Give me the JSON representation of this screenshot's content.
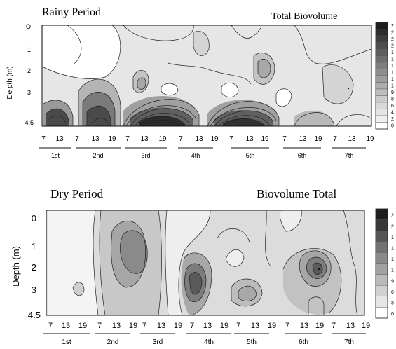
{
  "chart_data": [
    {
      "type": "contour",
      "title": "Rainy Period",
      "subtitle": "Total Biovolume",
      "ylabel": "De pth  (m)",
      "y_ticks": [
        "O",
        "1",
        "2",
        "3",
        "4.5"
      ],
      "x_ticks": [
        "7",
        "13",
        "7",
        "13",
        "19",
        "7",
        "13",
        "19",
        "7",
        "13",
        "19",
        "7",
        "13",
        "19",
        "7",
        "13",
        "19",
        "7",
        "13",
        "19"
      ],
      "x_groups": [
        "1st",
        "2nd",
        "3rd",
        "4th",
        "5th",
        "6th",
        "7th"
      ],
      "legend_labels": [
        "2",
        "2",
        "2",
        "2",
        "1",
        "1",
        "1",
        "1",
        "1",
        "1",
        "9",
        "8",
        "6",
        "4",
        "2",
        "0"
      ],
      "colors": [
        "#1e1e1e",
        "#2e2e2e",
        "#3e3e3e",
        "#4e4e4e",
        "#5e5e5e",
        "#6e6e6e",
        "#7e7e7e",
        "#8e8e8e",
        "#9e9e9e",
        "#aeaeae",
        "#bebebe",
        "#cccccc",
        "#d8d8d8",
        "#e4e4e4",
        "#efefef",
        "#ffffff"
      ]
    },
    {
      "type": "contour",
      "title": "Dry Period",
      "subtitle": "Biovolume Total",
      "ylabel": "Depth (m)",
      "y_ticks": [
        "0",
        "1",
        "2",
        "3",
        "4.5"
      ],
      "x_ticks": [
        "7",
        "13",
        "19",
        "7",
        "13",
        "19",
        "7",
        "13",
        "19",
        "7",
        "13",
        "19",
        "7",
        "13",
        "19",
        "7",
        "13",
        "19",
        "7",
        "13",
        "19"
      ],
      "x_groups": [
        "1st",
        "2nd",
        "3rd",
        "4th",
        "5th",
        "6th",
        "7th"
      ],
      "legend_labels": [
        "2",
        "2",
        "1",
        "1",
        "1",
        "1",
        "9",
        "6",
        "3",
        "0"
      ],
      "colors": [
        "#1e1e1e",
        "#3a3a3a",
        "#565656",
        "#727272",
        "#8a8a8a",
        "#a2a2a2",
        "#bababa",
        "#d0d0d0",
        "#e6e6e6",
        "#ffffff"
      ]
    }
  ]
}
